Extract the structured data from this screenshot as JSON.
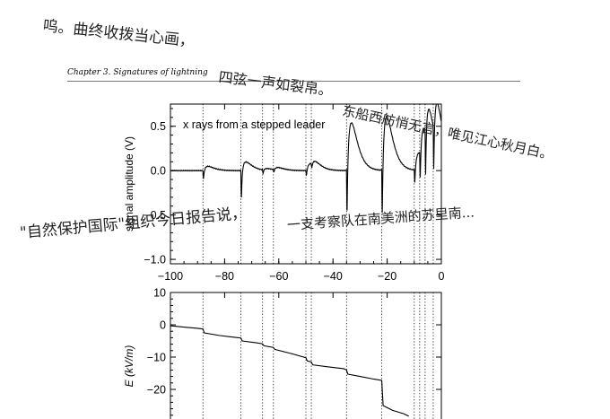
{
  "page": {
    "running_header": "Chapter 3.  Signatures of lightning"
  },
  "handwriting": {
    "line1": "呜。曲终收拨当心画，",
    "line2": "四弦一声如裂帛。",
    "line3": "东船西舫悄无言，唯见江心秋月白。",
    "line4": "\"自然保护国际\"组织今日报告说，",
    "line5": "一支考察队在南美洲的苏里南..."
  },
  "chart_data": [
    {
      "type": "line",
      "title": "x rays from a stepped leader",
      "xlabel": "",
      "ylabel": "signal amplitude (V)",
      "xlim": [
        -100,
        0
      ],
      "ylim": [
        -1.05,
        0.75
      ],
      "x_ticks": [
        "−100",
        "−80",
        "−60",
        "−40",
        "−20",
        "0"
      ],
      "x_tick_values": [
        -100,
        -80,
        -60,
        -40,
        -20,
        0
      ],
      "y_ticks": [
        "0.5",
        "0.0",
        "−0.5",
        "−1.0"
      ],
      "y_tick_values": [
        0.5,
        0.0,
        -0.5,
        -1.0
      ],
      "vlines": [
        -88,
        -74,
        -66,
        -62,
        -50,
        -48,
        -35,
        -22,
        -10,
        -8,
        -6,
        -3
      ],
      "pulses": [
        {
          "t": -88,
          "depth": -0.2,
          "peak": 0.05
        },
        {
          "t": -74,
          "depth": -0.65,
          "peak": 0.1
        },
        {
          "t": -66,
          "depth": -0.08,
          "peak": 0.02
        },
        {
          "t": -62,
          "depth": -0.06,
          "peak": 0.03
        },
        {
          "t": -50,
          "depth": -0.12,
          "peak": 0.08
        },
        {
          "t": -48,
          "depth": -0.1,
          "peak": 0.05
        },
        {
          "t": -35,
          "depth": -1.0,
          "peak": 0.55
        },
        {
          "t": -22,
          "depth": -1.0,
          "peak": 0.62
        },
        {
          "t": -10,
          "depth": -0.3,
          "peak": 0.2
        },
        {
          "t": -8,
          "depth": -0.6,
          "peak": 0.35
        },
        {
          "t": -6,
          "depth": -1.0,
          "peak": 0.4
        },
        {
          "t": -3,
          "depth": -0.9,
          "peak": 0.5
        }
      ]
    },
    {
      "type": "line",
      "title": "",
      "xlabel": "",
      "ylabel": "E (kV/m)",
      "xlim": [
        -100,
        0
      ],
      "ylim": [
        -30,
        10
      ],
      "y_ticks": [
        "10",
        "0",
        "−10",
        "−20"
      ],
      "y_tick_values": [
        10,
        0,
        -10,
        -20
      ],
      "vlines": [
        -88,
        -74,
        -66,
        -62,
        -50,
        -48,
        -35,
        -22,
        -10,
        -8,
        -6,
        -3
      ],
      "x": [
        -100,
        -95,
        -90,
        -88,
        -87.5,
        -82,
        -76,
        -74,
        -73.5,
        -68,
        -66,
        -65.5,
        -62,
        -61.5,
        -55,
        -50,
        -49.5,
        -48,
        -47.5,
        -42,
        -36,
        -35,
        -34.5,
        -30,
        -25,
        -22,
        -21.5,
        -18,
        -14,
        -12
      ],
      "y": [
        -0.3,
        -0.7,
        -1.1,
        -1.3,
        -2.5,
        -3.3,
        -3.9,
        -4.1,
        -5.0,
        -5.6,
        -5.9,
        -6.5,
        -7.0,
        -7.6,
        -9.0,
        -10.2,
        -11.2,
        -11.5,
        -12.4,
        -13.0,
        -13.6,
        -14.0,
        -15.3,
        -16.0,
        -16.8,
        -17.2,
        -25.0,
        -26.5,
        -27.5,
        -28.3
      ]
    }
  ]
}
